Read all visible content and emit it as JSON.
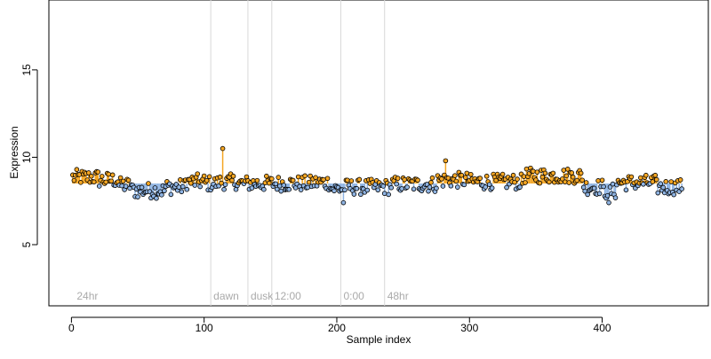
{
  "chart_data": {
    "type": "scatter",
    "xlabel": "Sample index",
    "ylabel": "Expression",
    "xlim": [
      -17,
      480
    ],
    "ylim": [
      1.5,
      19.0
    ],
    "x_ticks": [
      0,
      100,
      200,
      300,
      400
    ],
    "y_ticks": [
      5,
      10,
      15
    ],
    "baseline": 8.5,
    "n_points": 460,
    "colors": {
      "above_baseline": "#f5a623",
      "below_baseline": "#8fb4e3",
      "point_edge": "#000000",
      "marker_line": "#d8d8d8",
      "marker_text": "#aaaaaa"
    },
    "markers": [
      {
        "x": 2,
        "label": "24hr"
      },
      {
        "x": 105,
        "label": "dawn"
      },
      {
        "x": 133,
        "label": "dusk"
      },
      {
        "x": 151,
        "label": "12:00"
      },
      {
        "x": 203,
        "label": "0:00"
      },
      {
        "x": 236,
        "label": "48hr"
      }
    ],
    "highlights": [
      {
        "x": 114,
        "y": 10.5
      },
      {
        "x": 282,
        "y": 9.8
      },
      {
        "x": 205,
        "y": 7.4
      },
      {
        "x": 405,
        "y": 7.4
      }
    ]
  }
}
